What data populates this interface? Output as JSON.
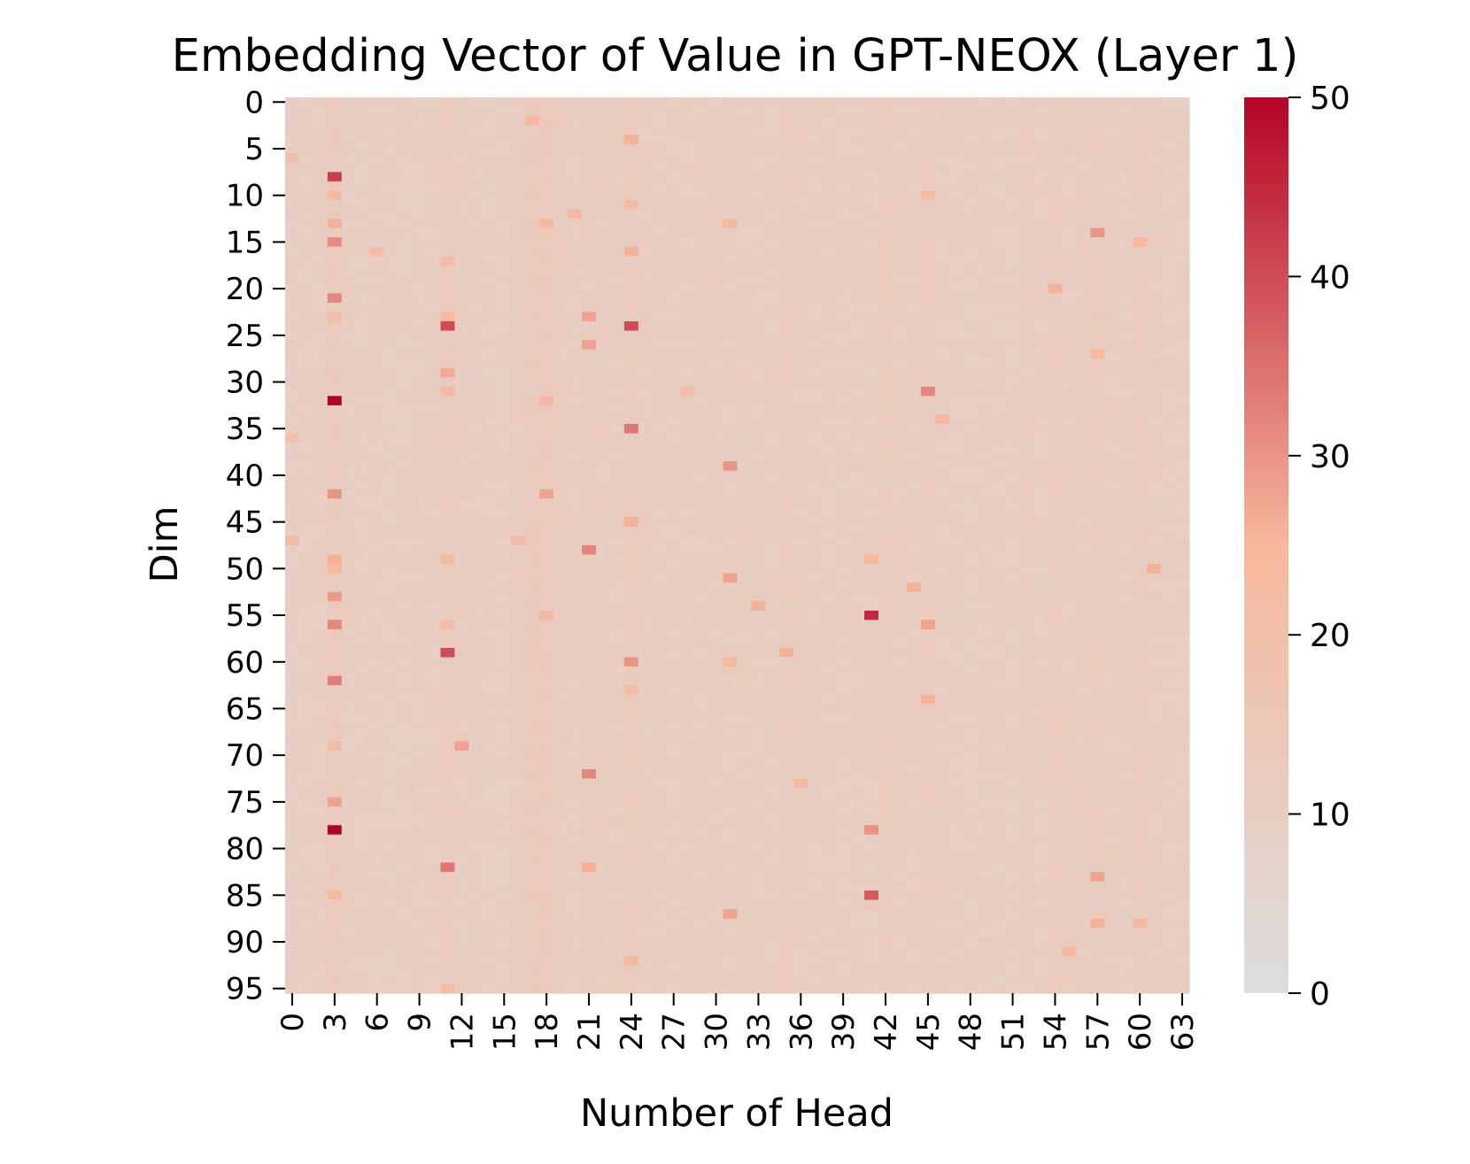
{
  "chart_data": {
    "type": "heatmap",
    "title": "Embedding Vector of Value in GPT-NEOX (Layer 1)",
    "xlabel": "Number of Head",
    "ylabel": "Dim",
    "n_heads": 64,
    "n_dims": 96,
    "x_tick_labels": [
      "0",
      "3",
      "6",
      "9",
      "12",
      "15",
      "18",
      "21",
      "24",
      "27",
      "30",
      "33",
      "36",
      "39",
      "42",
      "45",
      "48",
      "51",
      "54",
      "57",
      "60",
      "63"
    ],
    "y_tick_labels": [
      "0",
      "5",
      "10",
      "15",
      "20",
      "25",
      "30",
      "35",
      "40",
      "45",
      "50",
      "55",
      "60",
      "65",
      "70",
      "75",
      "80",
      "85",
      "90",
      "95"
    ],
    "colorbar": {
      "min": 0,
      "max": 50,
      "ticks": [
        "0",
        "10",
        "20",
        "30",
        "40",
        "50"
      ],
      "colors": [
        "#dddddd",
        "#f7b89c",
        "#b40426"
      ]
    },
    "grid": false,
    "column_base_values": [
      10.5,
      10.2,
      10.4,
      12.5,
      10.6,
      10.2,
      10.4,
      10.0,
      10.1,
      10.4,
      10.6,
      12.0,
      11.0,
      10.8,
      10.2,
      10.0,
      11.2,
      12.8,
      12.9,
      11.2,
      10.6,
      11.1,
      11.0,
      10.7,
      12.0,
      10.8,
      10.6,
      10.5,
      10.7,
      10.9,
      11.0,
      10.7,
      11.0,
      10.6,
      10.5,
      11.8,
      10.9,
      10.4,
      10.6,
      10.5,
      10.7,
      10.6,
      11.8,
      10.9,
      10.7,
      11.7,
      10.6,
      10.4,
      10.2,
      10.6,
      10.3,
      10.1,
      11.3,
      10.4,
      11.5,
      10.8,
      10.9,
      12.0,
      10.8,
      10.6,
      11.7,
      10.8,
      10.5,
      10.2
    ],
    "hot_cells": [
      [
        3,
        8,
        42
      ],
      [
        3,
        32,
        50
      ],
      [
        3,
        78,
        50
      ],
      [
        3,
        21,
        32
      ],
      [
        3,
        15,
        31
      ],
      [
        3,
        13,
        26
      ],
      [
        3,
        10,
        24
      ],
      [
        3,
        42,
        30
      ],
      [
        3,
        49,
        26
      ],
      [
        3,
        53,
        29
      ],
      [
        3,
        56,
        32
      ],
      [
        3,
        62,
        33
      ],
      [
        3,
        75,
        28
      ],
      [
        3,
        85,
        25
      ],
      [
        3,
        69,
        22
      ],
      [
        3,
        23,
        22
      ],
      [
        3,
        50,
        24
      ],
      [
        11,
        24,
        40
      ],
      [
        11,
        59,
        40
      ],
      [
        11,
        82,
        34
      ],
      [
        11,
        29,
        27
      ],
      [
        11,
        31,
        24
      ],
      [
        11,
        17,
        22
      ],
      [
        11,
        49,
        24
      ],
      [
        11,
        23,
        24
      ],
      [
        11,
        56,
        22
      ],
      [
        11,
        95,
        22
      ],
      [
        24,
        24,
        40
      ],
      [
        24,
        35,
        34
      ],
      [
        24,
        4,
        26
      ],
      [
        24,
        16,
        26
      ],
      [
        24,
        60,
        30
      ],
      [
        24,
        45,
        26
      ],
      [
        24,
        92,
        24
      ],
      [
        24,
        11,
        22
      ],
      [
        24,
        63,
        22
      ],
      [
        41,
        55,
        45
      ],
      [
        41,
        85,
        38
      ],
      [
        41,
        78,
        30
      ],
      [
        41,
        49,
        24
      ],
      [
        45,
        31,
        32
      ],
      [
        45,
        56,
        28
      ],
      [
        45,
        64,
        26
      ],
      [
        45,
        10,
        22
      ],
      [
        57,
        14,
        30
      ],
      [
        57,
        83,
        28
      ],
      [
        57,
        88,
        26
      ],
      [
        57,
        27,
        24
      ],
      [
        61,
        50,
        26
      ],
      [
        60,
        15,
        24
      ],
      [
        60,
        88,
        24
      ],
      [
        21,
        48,
        32
      ],
      [
        21,
        72,
        32
      ],
      [
        21,
        26,
        28
      ],
      [
        21,
        23,
        28
      ],
      [
        21,
        82,
        26
      ],
      [
        31,
        39,
        30
      ],
      [
        31,
        51,
        28
      ],
      [
        31,
        87,
        28
      ],
      [
        31,
        13,
        24
      ],
      [
        31,
        60,
        24
      ],
      [
        18,
        42,
        28
      ],
      [
        18,
        55,
        24
      ],
      [
        18,
        32,
        24
      ],
      [
        18,
        13,
        24
      ],
      [
        12,
        69,
        28
      ],
      [
        20,
        12,
        24
      ],
      [
        17,
        2,
        24
      ],
      [
        55,
        91,
        24
      ],
      [
        54,
        20,
        26
      ],
      [
        46,
        34,
        24
      ],
      [
        44,
        52,
        26
      ],
      [
        35,
        59,
        26
      ],
      [
        33,
        54,
        26
      ],
      [
        36,
        73,
        24
      ],
      [
        28,
        31,
        22
      ],
      [
        16,
        47,
        22
      ],
      [
        6,
        16,
        22
      ],
      [
        0,
        6,
        20
      ],
      [
        0,
        36,
        20
      ],
      [
        0,
        47,
        22
      ]
    ]
  }
}
